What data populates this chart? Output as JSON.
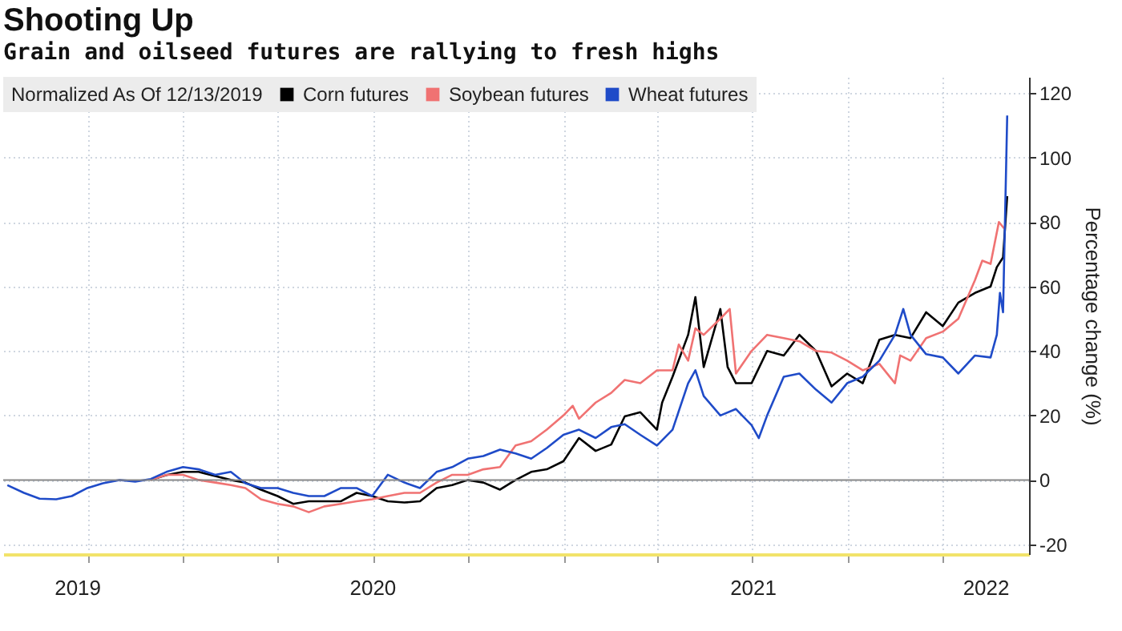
{
  "chart_data": {
    "type": "line",
    "title": "Shooting Up",
    "subtitle": "Grain and oilseed futures are rallying to fresh highs",
    "ylabel": "Percentage change (%)",
    "legend_title": "Normalized As Of 12/13/2019",
    "legend": "top left",
    "grid": true,
    "line_style": "solid",
    "xlim": [
      "2019-07-12",
      "2022-03-25"
    ],
    "xticks": [
      {
        "value": "2019-09-21",
        "label": "2019"
      },
      {
        "value": "2019-10-01",
        "label": null
      },
      {
        "value": "2020-01-01",
        "label": null
      },
      {
        "value": "2020-04-01",
        "label": null
      },
      {
        "value": "2020-07-01",
        "label": "2020"
      },
      {
        "value": "2020-07-02",
        "label": null
      },
      {
        "value": "2020-10-01",
        "label": null
      },
      {
        "value": "2021-01-01",
        "label": null
      },
      {
        "value": "2021-04-01",
        "label": null
      },
      {
        "value": "2021-07-02",
        "label": "2021"
      },
      {
        "value": "2021-07-01",
        "label": null
      },
      {
        "value": "2021-10-01",
        "label": null
      },
      {
        "value": "2022-01-01",
        "label": null
      },
      {
        "value": "2022-02-11",
        "label": "2022"
      }
    ],
    "ylim": [
      -23,
      125
    ],
    "yticks": [
      -20,
      0,
      20,
      40,
      60,
      80,
      100,
      120
    ],
    "ref_lines": [
      {
        "axis": "y",
        "value": 0,
        "label": null,
        "color": "#888888"
      }
    ],
    "series": [
      {
        "name": "Corn futures",
        "color": "#000000",
        "x": [
          "2019-12-01",
          "2019-12-16",
          "2020-01-01",
          "2020-01-16",
          "2020-02-01",
          "2020-02-16",
          "2020-03-01",
          "2020-03-16",
          "2020-04-01",
          "2020-04-16",
          "2020-05-01",
          "2020-05-16",
          "2020-06-01",
          "2020-06-16",
          "2020-07-01",
          "2020-07-16",
          "2020-08-01",
          "2020-08-16",
          "2020-09-01",
          "2020-09-16",
          "2020-10-01",
          "2020-10-16",
          "2020-11-01",
          "2020-11-16",
          "2020-12-01",
          "2020-12-16",
          "2021-01-01",
          "2021-01-16",
          "2021-02-01",
          "2021-02-16",
          "2021-03-01",
          "2021-03-16",
          "2021-04-01",
          "2021-04-06",
          "2021-04-16",
          "2021-05-01",
          "2021-05-08",
          "2021-05-16",
          "2021-06-01",
          "2021-06-08",
          "2021-06-16",
          "2021-07-01",
          "2021-07-16",
          "2021-08-01",
          "2021-08-16",
          "2021-09-01",
          "2021-09-16",
          "2021-10-01",
          "2021-10-16",
          "2021-11-01",
          "2021-11-16",
          "2021-12-01",
          "2021-12-16",
          "2022-01-01",
          "2022-01-16",
          "2022-02-01",
          "2022-02-16",
          "2022-02-22",
          "2022-02-28",
          "2022-03-04"
        ],
        "values": [
          0,
          1.5,
          2.5,
          2.5,
          1.2,
          0,
          -0.8,
          -3,
          -5,
          -7.4,
          -6.6,
          -6.6,
          -6.6,
          -4,
          -5,
          -6.6,
          -7,
          -6.6,
          -2.5,
          -1.6,
          0,
          -0.8,
          -3,
          0,
          2.5,
          3.3,
          5.8,
          13,
          9,
          11,
          19.7,
          21,
          15.6,
          24,
          32,
          45,
          56.7,
          35,
          53,
          35,
          30,
          30,
          40,
          38.6,
          45,
          40,
          29,
          33,
          30,
          43.5,
          45,
          44,
          52,
          47.7,
          55,
          58,
          60,
          66,
          69,
          88
        ]
      },
      {
        "name": "Soybean futures",
        "color": "#f07272",
        "x": [
          "2019-12-01",
          "2019-12-16",
          "2020-01-01",
          "2020-01-16",
          "2020-02-01",
          "2020-02-16",
          "2020-03-01",
          "2020-03-16",
          "2020-04-01",
          "2020-04-16",
          "2020-05-01",
          "2020-05-16",
          "2020-06-01",
          "2020-06-16",
          "2020-07-01",
          "2020-07-16",
          "2020-08-01",
          "2020-08-16",
          "2020-09-01",
          "2020-09-16",
          "2020-10-01",
          "2020-10-16",
          "2020-11-01",
          "2020-11-16",
          "2020-12-01",
          "2020-12-16",
          "2021-01-01",
          "2021-01-10",
          "2021-01-16",
          "2021-02-01",
          "2021-02-16",
          "2021-03-01",
          "2021-03-16",
          "2021-04-01",
          "2021-04-16",
          "2021-04-22",
          "2021-05-01",
          "2021-05-08",
          "2021-05-16",
          "2021-06-01",
          "2021-06-10",
          "2021-06-16",
          "2021-07-01",
          "2021-07-16",
          "2021-08-01",
          "2021-08-16",
          "2021-09-01",
          "2021-09-16",
          "2021-10-01",
          "2021-10-16",
          "2021-11-01",
          "2021-11-16",
          "2021-11-21",
          "2021-12-01",
          "2021-12-16",
          "2022-01-01",
          "2022-01-16",
          "2022-02-01",
          "2022-02-08",
          "2022-02-16",
          "2022-02-24",
          "2022-03-01"
        ],
        "values": [
          0,
          1.6,
          1.6,
          0,
          -0.8,
          -1.6,
          -2.5,
          -6,
          -7.4,
          -8.2,
          -10,
          -8.2,
          -7.4,
          -6.6,
          -6,
          -5,
          -4,
          -4,
          -0.8,
          1.6,
          1.6,
          3.3,
          4,
          10.7,
          12,
          15.6,
          20,
          23,
          19,
          24,
          27,
          31,
          30,
          34,
          34,
          42,
          37,
          47,
          45,
          50,
          53,
          33,
          40,
          45,
          44,
          43,
          40,
          39.5,
          37,
          34,
          36,
          30,
          38.6,
          37,
          44,
          46,
          50,
          62,
          68,
          67,
          80,
          78
        ]
      },
      {
        "name": "Wheat futures",
        "color": "#1f4bc8",
        "x": [
          "2019-07-16",
          "2019-08-01",
          "2019-08-16",
          "2019-09-01",
          "2019-09-16",
          "2019-10-01",
          "2019-10-16",
          "2019-11-01",
          "2019-11-16",
          "2019-12-01",
          "2019-12-16",
          "2020-01-01",
          "2020-01-16",
          "2020-02-01",
          "2020-02-16",
          "2020-03-01",
          "2020-03-16",
          "2020-04-01",
          "2020-04-16",
          "2020-05-01",
          "2020-05-16",
          "2020-06-01",
          "2020-06-16",
          "2020-07-01",
          "2020-07-16",
          "2020-08-01",
          "2020-08-16",
          "2020-09-01",
          "2020-09-16",
          "2020-10-01",
          "2020-10-16",
          "2020-11-01",
          "2020-11-16",
          "2020-12-01",
          "2020-12-16",
          "2021-01-01",
          "2021-01-16",
          "2021-02-01",
          "2021-02-16",
          "2021-03-01",
          "2021-03-16",
          "2021-04-01",
          "2021-04-16",
          "2021-05-01",
          "2021-05-08",
          "2021-05-16",
          "2021-06-01",
          "2021-06-16",
          "2021-07-01",
          "2021-07-08",
          "2021-07-16",
          "2021-08-01",
          "2021-08-16",
          "2021-09-01",
          "2021-09-16",
          "2021-10-01",
          "2021-10-16",
          "2021-11-01",
          "2021-11-16",
          "2021-11-24",
          "2021-12-01",
          "2021-12-16",
          "2022-01-01",
          "2022-01-16",
          "2022-02-01",
          "2022-02-16",
          "2022-02-22",
          "2022-02-25",
          "2022-02-28",
          "2022-03-04"
        ],
        "values": [
          -1.6,
          -4,
          -5.8,
          -6,
          -5,
          -2.5,
          -1,
          0,
          -0.5,
          0.3,
          2.5,
          4,
          3.3,
          1.6,
          2.5,
          -1,
          -2.5,
          -2.5,
          -4,
          -5,
          -5,
          -2.5,
          -2.5,
          -5,
          1.6,
          -0.8,
          -2.5,
          2.5,
          4,
          6.6,
          7.4,
          9.4,
          8.2,
          6.6,
          9.9,
          14,
          15.6,
          13,
          16.4,
          17.3,
          14,
          10.7,
          15.6,
          30,
          34,
          26,
          20,
          22,
          17,
          13,
          20,
          32,
          33,
          28,
          24,
          30,
          32,
          37,
          45,
          53,
          45,
          39,
          38,
          33,
          38.6,
          38,
          45,
          58,
          52,
          113
        ]
      }
    ]
  }
}
